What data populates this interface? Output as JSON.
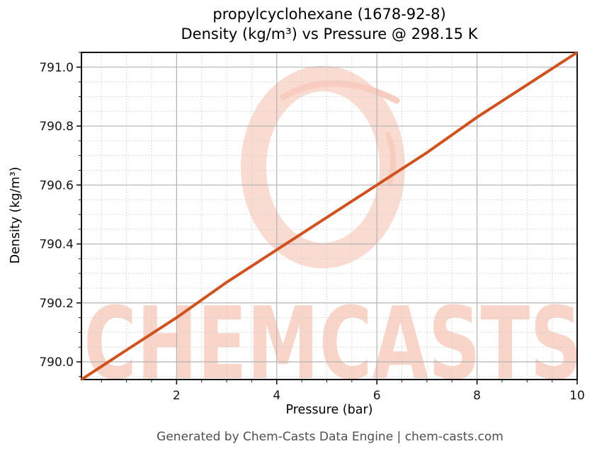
{
  "header": {
    "title_line1": "propylcyclohexane (1678-92-8)",
    "title_line2": "Density (kg/m³) vs Pressure @ 298.15 K"
  },
  "chart_data": {
    "type": "line",
    "title": "propylcyclohexane (1678-92-8)",
    "subtitle": "Density (kg/m³) vs Pressure @ 298.15 K",
    "xlabel": "Pressure (bar)",
    "ylabel": "Density (kg/m³)",
    "xlim": [
      0.1,
      10
    ],
    "ylim": [
      789.94,
      791.05
    ],
    "x_ticks": [
      2,
      4,
      6,
      8,
      10
    ],
    "x_tick_labels": [
      "2",
      "4",
      "6",
      "8",
      "10"
    ],
    "y_ticks": [
      790.0,
      790.2,
      790.4,
      790.6,
      790.8,
      791.0
    ],
    "y_tick_labels": [
      "790.0",
      "790.2",
      "790.4",
      "790.6",
      "790.8",
      "791.0"
    ],
    "x_minor_step": 0.5,
    "y_minor_step": 0.05,
    "grid": true,
    "legend": "none",
    "line_color": "#d0521f",
    "line_width": 4,
    "series": [
      {
        "name": "Density @ 298.15 K",
        "x": [
          0.1,
          1,
          2,
          3,
          4,
          5,
          6,
          7,
          8,
          9,
          10
        ],
        "y": [
          789.94,
          790.04,
          790.15,
          790.27,
          790.38,
          790.49,
          790.6,
          790.71,
          790.83,
          790.94,
          791.05
        ]
      }
    ]
  },
  "watermark": {
    "text": "CHEMCASTS",
    "ring_color": "#fadbd1",
    "swirl_color": "#f8cdc0",
    "text_color": "#f9d5c9"
  },
  "footer": {
    "text": "Generated by Chem-Casts Data Engine | chem-casts.com"
  }
}
